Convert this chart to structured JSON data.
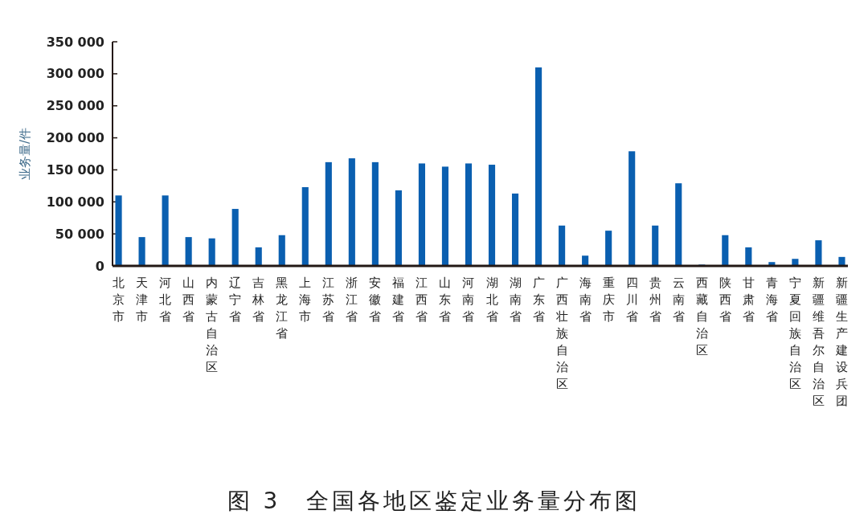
{
  "chart_data": {
    "type": "bar",
    "title": "图 3　全国各地区鉴定业务量分布图",
    "ylabel": "业务量/件",
    "categories": [
      "北京市",
      "天津市",
      "河北省",
      "山西省",
      "内蒙古自治区",
      "辽宁省",
      "吉林省",
      "黑龙江省",
      "上海市",
      "江苏省",
      "浙江省",
      "安徽省",
      "福建省",
      "江西省",
      "山东省",
      "河南省",
      "湖北省",
      "湖南省",
      "广东省",
      "广西壮族自治区",
      "海南省",
      "重庆市",
      "四川省",
      "贵州省",
      "云南省",
      "西藏自治区",
      "陕西省",
      "甘肃省",
      "青海省",
      "宁夏回族自治区",
      "新疆维吾尔自治区",
      "新疆生产建设兵团"
    ],
    "values": [
      110000,
      45000,
      110000,
      45000,
      43000,
      89000,
      29000,
      48000,
      123000,
      162000,
      168000,
      162000,
      118000,
      160000,
      155000,
      160000,
      158000,
      113000,
      310000,
      63000,
      16000,
      55000,
      179000,
      63000,
      129000,
      2000,
      48000,
      29000,
      6000,
      11000,
      40000,
      14000
    ],
    "color": "#0a5fb0",
    "ylim": [
      0,
      350000
    ],
    "yticks": [
      0,
      {
        "value": 50000,
        "label": "50 000"
      },
      {
        "value": 100000,
        "label": "100 000"
      },
      {
        "value": 150000,
        "label": "150 000"
      },
      {
        "value": 200000,
        "label": "200 000"
      },
      {
        "value": 250000,
        "label": "250 000"
      },
      {
        "value": 300000,
        "label": "300 000"
      },
      {
        "value": 350000,
        "label": "350 000"
      }
    ],
    "grid": false
  }
}
